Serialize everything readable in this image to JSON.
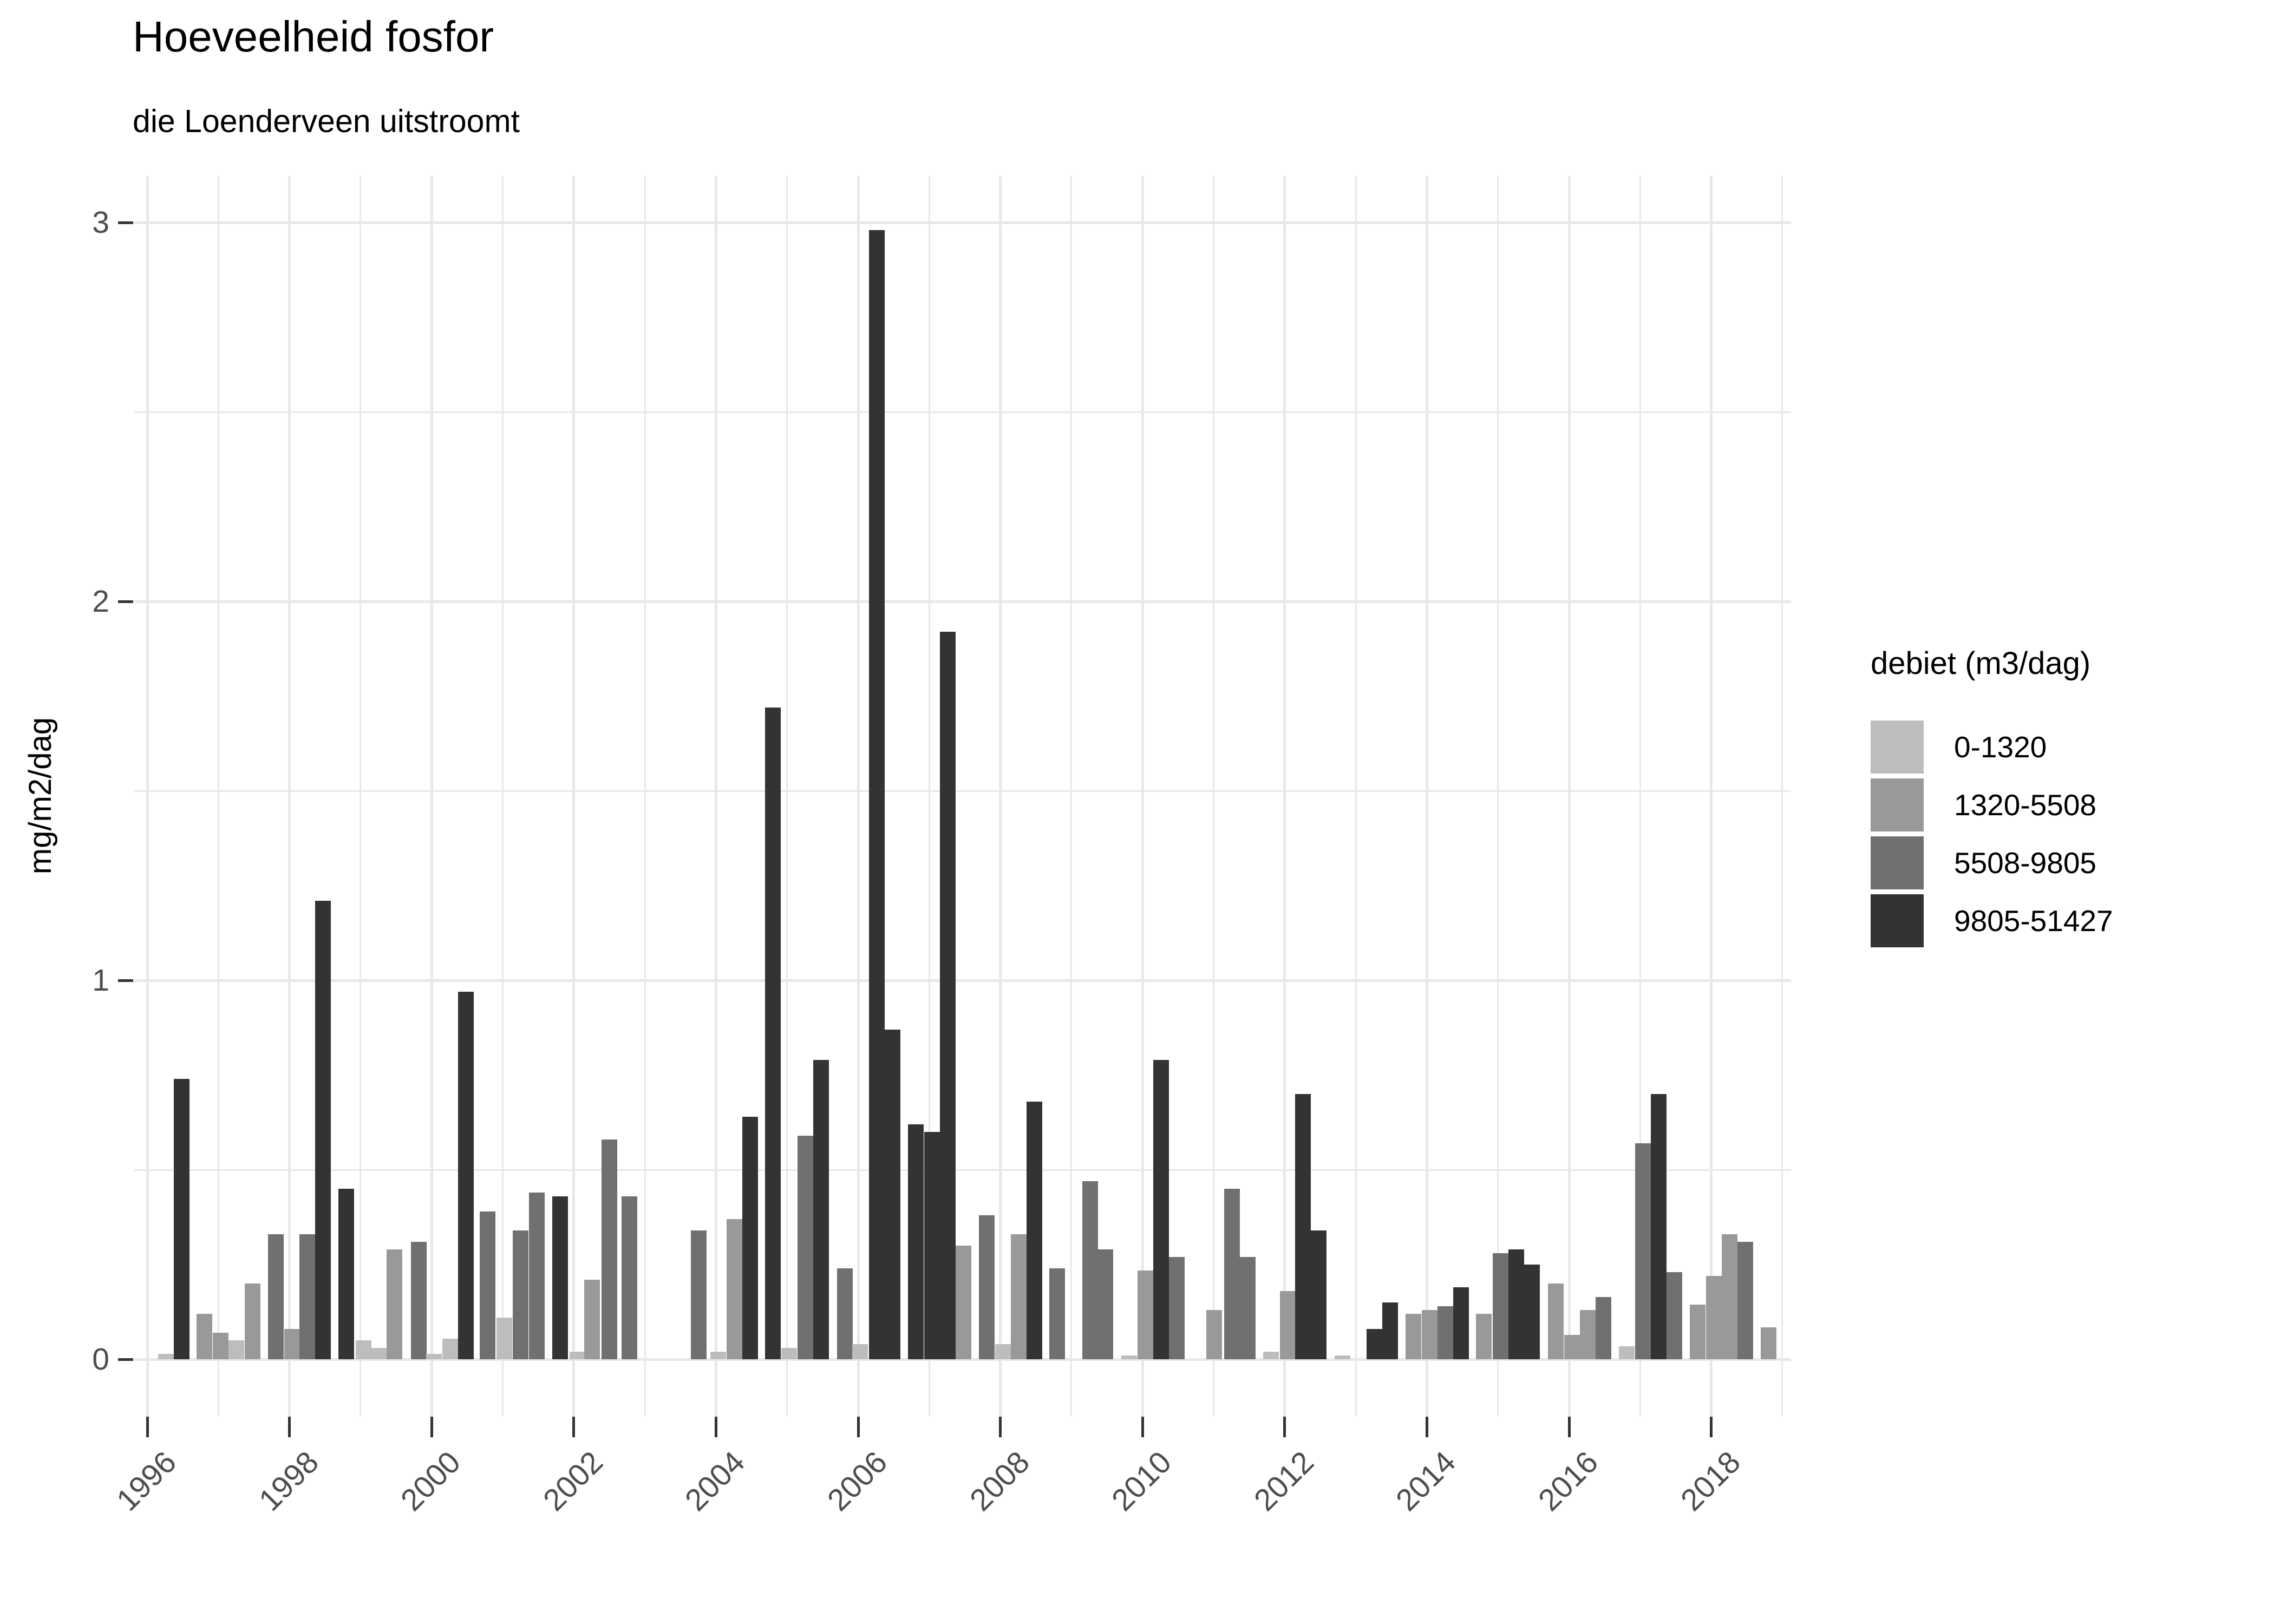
{
  "title": "Hoeveelheid fosfor",
  "subtitle": "die Loenderveen uitstroomt",
  "y_axis": {
    "title": "mg/m2/dag",
    "tick_labels": [
      "0",
      "1",
      "2",
      "3"
    ],
    "tick_values": [
      0,
      1,
      2,
      3
    ]
  },
  "x_axis": {
    "tick_labels": [
      "1996",
      "1998",
      "2000",
      "2002",
      "2004",
      "2006",
      "2008",
      "2010",
      "2012",
      "2014",
      "2016",
      "2018"
    ],
    "tick_values": [
      1996,
      1998,
      2000,
      2002,
      2004,
      2006,
      2008,
      2010,
      2012,
      2014,
      2016,
      2018
    ]
  },
  "legend": {
    "title": "debiet (m3/dag)",
    "items": [
      {
        "label": "0-1320",
        "color": "#bdbdbd"
      },
      {
        "label": "1320-5508",
        "color": "#999999"
      },
      {
        "label": "5508-9805",
        "color": "#707070"
      },
      {
        "label": "9805-51427",
        "color": "#333333"
      }
    ]
  },
  "chart_data": {
    "type": "bar",
    "title": "Hoeveelheid fosfor",
    "subtitle": "die Loenderveen uitstroomt",
    "xlabel": "",
    "ylabel": "mg/m2/dag",
    "ylim": [
      0,
      3
    ],
    "xlim": [
      1995.8,
      2019.2
    ],
    "grid": true,
    "legend_position": "right",
    "legend_title": "debiet (m3/dag)",
    "categories": [
      "0-1320",
      "1320-5508",
      "5508-9805",
      "9805-51427"
    ],
    "category_colors": [
      "#bdbdbd",
      "#999999",
      "#707070",
      "#333333"
    ],
    "bar_format": [
      "x_year",
      "category_index",
      "value_mg_m2_dag"
    ],
    "bars": [
      [
        1996.26,
        0,
        0.015
      ],
      [
        1996.48,
        3,
        0.74
      ],
      [
        1996.8,
        1,
        0.12
      ],
      [
        1997.03,
        1,
        0.07
      ],
      [
        1997.25,
        0,
        0.05
      ],
      [
        1997.48,
        1,
        0.2
      ],
      [
        1997.81,
        2,
        0.33
      ],
      [
        1998.04,
        1,
        0.08
      ],
      [
        1998.25,
        2,
        0.33
      ],
      [
        1998.47,
        3,
        1.21
      ],
      [
        1998.8,
        3,
        0.45
      ],
      [
        1999.04,
        0,
        0.05
      ],
      [
        1999.26,
        0,
        0.03
      ],
      [
        1999.48,
        1,
        0.29
      ],
      [
        1999.82,
        2,
        0.31
      ],
      [
        2000.03,
        0,
        0.015
      ],
      [
        2000.26,
        0,
        0.055
      ],
      [
        2000.48,
        3,
        0.97
      ],
      [
        2000.79,
        2,
        0.39
      ],
      [
        2001.02,
        0,
        0.11
      ],
      [
        2001.25,
        2,
        0.34
      ],
      [
        2001.48,
        2,
        0.44
      ],
      [
        2001.81,
        3,
        0.43
      ],
      [
        2002.05,
        0,
        0.02
      ],
      [
        2002.26,
        1,
        0.21
      ],
      [
        2002.5,
        2,
        0.58
      ],
      [
        2002.78,
        2,
        0.43
      ],
      [
        2003.76,
        2,
        0.34
      ],
      [
        2004.03,
        0,
        0.02
      ],
      [
        2004.26,
        1,
        0.37
      ],
      [
        2004.48,
        3,
        0.64
      ],
      [
        2004.8,
        3,
        1.72
      ],
      [
        2005.03,
        0,
        0.03
      ],
      [
        2005.26,
        2,
        0.59
      ],
      [
        2005.48,
        3,
        0.79
      ],
      [
        2005.81,
        2,
        0.24
      ],
      [
        2006.03,
        0,
        0.04
      ],
      [
        2006.26,
        3,
        2.98
      ],
      [
        2006.48,
        3,
        0.87
      ],
      [
        2006.81,
        3,
        0.62
      ],
      [
        2007.04,
        3,
        0.6
      ],
      [
        2007.26,
        3,
        1.92
      ],
      [
        2007.48,
        1,
        0.3
      ],
      [
        2007.81,
        2,
        0.38
      ],
      [
        2008.04,
        0,
        0.04
      ],
      [
        2008.26,
        1,
        0.33
      ],
      [
        2008.48,
        3,
        0.68
      ],
      [
        2008.8,
        2,
        0.24
      ],
      [
        2009.26,
        2,
        0.47
      ],
      [
        2009.48,
        2,
        0.29
      ],
      [
        2009.81,
        0,
        0.01
      ],
      [
        2010.04,
        1,
        0.235
      ],
      [
        2010.26,
        3,
        0.79
      ],
      [
        2010.48,
        2,
        0.27
      ],
      [
        2011.01,
        1,
        0.13
      ],
      [
        2011.26,
        2,
        0.45
      ],
      [
        2011.48,
        2,
        0.27
      ],
      [
        2011.81,
        0,
        0.02
      ],
      [
        2012.04,
        1,
        0.18
      ],
      [
        2012.26,
        3,
        0.7
      ],
      [
        2012.48,
        3,
        0.34
      ],
      [
        2012.81,
        0,
        0.01
      ],
      [
        2013.26,
        3,
        0.08
      ],
      [
        2013.48,
        3,
        0.15
      ],
      [
        2013.81,
        1,
        0.12
      ],
      [
        2014.04,
        1,
        0.13
      ],
      [
        2014.26,
        2,
        0.14
      ],
      [
        2014.48,
        3,
        0.19
      ],
      [
        2014.8,
        1,
        0.12
      ],
      [
        2015.04,
        2,
        0.28
      ],
      [
        2015.26,
        3,
        0.29
      ],
      [
        2015.48,
        3,
        0.25
      ],
      [
        2015.81,
        1,
        0.2
      ],
      [
        2016.04,
        1,
        0.065
      ],
      [
        2016.26,
        1,
        0.13
      ],
      [
        2016.48,
        2,
        0.165
      ],
      [
        2016.81,
        0,
        0.035
      ],
      [
        2017.04,
        2,
        0.57
      ],
      [
        2017.26,
        3,
        0.7
      ],
      [
        2017.48,
        2,
        0.23
      ],
      [
        2017.81,
        1,
        0.145
      ],
      [
        2018.04,
        1,
        0.22
      ],
      [
        2018.26,
        1,
        0.33
      ],
      [
        2018.48,
        2,
        0.31
      ],
      [
        2018.81,
        1,
        0.085
      ]
    ],
    "y_gridlines_major": [
      0,
      1,
      2,
      3
    ],
    "y_gridlines_minor": [
      0.5,
      1.5,
      2.5
    ],
    "x_gridlines_major": [
      1996,
      1998,
      2000,
      2002,
      2004,
      2006,
      2008,
      2010,
      2012,
      2014,
      2016,
      2018
    ],
    "x_gridlines_minor": [
      1997,
      1999,
      2001,
      2003,
      2005,
      2007,
      2009,
      2011,
      2013,
      2015,
      2017,
      2019
    ]
  }
}
